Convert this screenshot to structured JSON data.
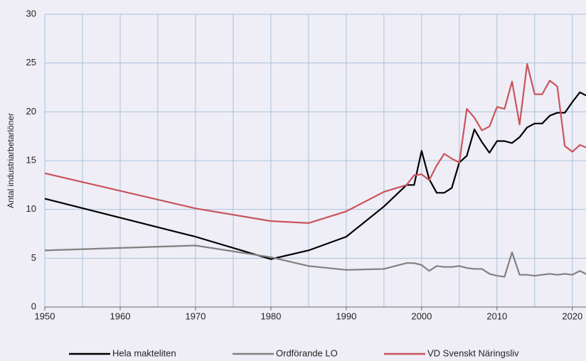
{
  "chart_data": {
    "type": "line",
    "y_label": "Antal industriarbetarlöner",
    "x": [
      1950,
      1970,
      1980,
      1985,
      1990,
      1995,
      1998,
      1999,
      2000,
      2001,
      2002,
      2003,
      2004,
      2005,
      2006,
      2007,
      2008,
      2009,
      2010,
      2011,
      2012,
      2013,
      2014,
      2015,
      2016,
      2017,
      2018,
      2019,
      2020,
      2021,
      2022
    ],
    "series": [
      {
        "name": "Hela makteliten",
        "color": "#000000",
        "values": [
          11.1,
          7.2,
          4.9,
          5.8,
          7.2,
          10.3,
          12.5,
          12.5,
          16.0,
          13.1,
          11.7,
          11.7,
          12.2,
          14.8,
          15.5,
          18.2,
          16.9,
          15.8,
          17.0,
          17.0,
          16.8,
          17.4,
          18.4,
          18.8,
          18.8,
          19.6,
          19.9,
          19.9,
          21.0,
          22.0,
          21.6
        ]
      },
      {
        "name": "Ordförande LO",
        "color": "#808080",
        "values": [
          5.8,
          6.3,
          5.1,
          4.2,
          3.8,
          3.9,
          4.5,
          4.5,
          4.3,
          3.7,
          4.2,
          4.1,
          4.1,
          4.2,
          4.0,
          3.9,
          3.9,
          3.4,
          3.2,
          3.1,
          5.6,
          3.3,
          3.3,
          3.2,
          3.3,
          3.4,
          3.3,
          3.4,
          3.3,
          3.7,
          3.3
        ]
      },
      {
        "name": "VD Svenskt Näringsliv",
        "color": "#c9545c",
        "values": [
          13.7,
          10.1,
          8.8,
          8.6,
          9.8,
          11.8,
          12.5,
          13.5,
          13.6,
          13.0,
          14.5,
          15.7,
          15.2,
          14.8,
          20.3,
          19.4,
          18.1,
          18.5,
          20.5,
          20.3,
          23.1,
          18.7,
          24.9,
          21.8,
          21.8,
          23.2,
          22.6,
          16.5,
          15.9,
          16.6,
          16.3
        ]
      }
    ],
    "xlim": [
      1950,
      2022
    ],
    "xticks": [
      1950,
      1960,
      1970,
      1980,
      1990,
      2000,
      2010,
      2020
    ],
    "xgrid": [
      1950,
      1955,
      1960,
      1965,
      1970,
      1975,
      1980,
      1985,
      1990,
      1995,
      2000,
      2005,
      2010,
      2015,
      2020
    ],
    "ylim": [
      0,
      30
    ],
    "yticks": [
      0,
      5,
      10,
      15,
      20,
      25,
      30
    ],
    "grid": true,
    "legend": "bottom"
  }
}
